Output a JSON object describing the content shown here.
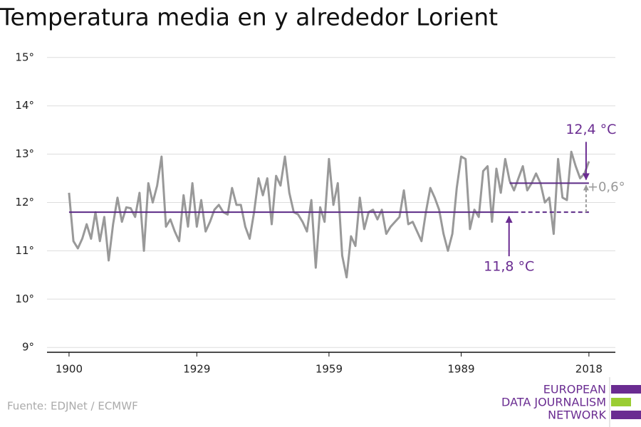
{
  "chart_data": {
    "type": "line",
    "title": "Temperatura media en y alrededor Lorient",
    "x": [
      1900,
      1901,
      1902,
      1903,
      1904,
      1905,
      1906,
      1907,
      1908,
      1909,
      1910,
      1911,
      1912,
      1913,
      1914,
      1915,
      1916,
      1917,
      1918,
      1919,
      1920,
      1921,
      1922,
      1923,
      1924,
      1925,
      1926,
      1927,
      1928,
      1929,
      1930,
      1931,
      1932,
      1933,
      1934,
      1935,
      1936,
      1937,
      1938,
      1939,
      1940,
      1941,
      1942,
      1943,
      1944,
      1945,
      1946,
      1947,
      1948,
      1949,
      1950,
      1951,
      1952,
      1953,
      1954,
      1955,
      1956,
      1957,
      1958,
      1959,
      1960,
      1961,
      1962,
      1963,
      1964,
      1965,
      1966,
      1967,
      1968,
      1969,
      1970,
      1971,
      1972,
      1973,
      1974,
      1975,
      1976,
      1977,
      1978,
      1979,
      1980,
      1981,
      1982,
      1983,
      1984,
      1985,
      1986,
      1987,
      1988,
      1989,
      1990,
      1991,
      1992,
      1993,
      1994,
      1995,
      1996,
      1997,
      1998,
      1999,
      2000,
      2001,
      2002,
      2003,
      2004,
      2005,
      2006,
      2007,
      2008,
      2009,
      2010,
      2011,
      2012,
      2013,
      2014,
      2015,
      2016,
      2017,
      2018
    ],
    "values": [
      12.2,
      11.2,
      11.05,
      11.25,
      11.55,
      11.25,
      11.8,
      11.2,
      11.7,
      10.8,
      11.55,
      12.1,
      11.6,
      11.9,
      11.88,
      11.7,
      12.2,
      11.0,
      12.4,
      12.0,
      12.35,
      12.95,
      11.5,
      11.65,
      11.4,
      11.2,
      12.15,
      11.5,
      12.4,
      11.5,
      12.05,
      11.4,
      11.6,
      11.85,
      11.95,
      11.8,
      11.75,
      12.3,
      11.95,
      11.95,
      11.5,
      11.25,
      11.8,
      12.5,
      12.15,
      12.5,
      11.55,
      12.55,
      12.35,
      12.95,
      12.2,
      11.8,
      11.75,
      11.6,
      11.4,
      12.05,
      10.65,
      11.9,
      11.6,
      12.9,
      11.95,
      12.4,
      10.9,
      10.45,
      11.3,
      11.1,
      12.1,
      11.45,
      11.8,
      11.85,
      11.65,
      11.85,
      11.35,
      11.5,
      11.6,
      11.7,
      12.25,
      11.55,
      11.6,
      11.4,
      11.2,
      11.8,
      12.3,
      12.1,
      11.85,
      11.35,
      11.0,
      11.35,
      12.3,
      12.95,
      12.9,
      11.45,
      11.85,
      11.7,
      12.65,
      12.75,
      11.6,
      12.7,
      12.2,
      12.9,
      12.45,
      12.25,
      12.5,
      12.75,
      12.25,
      12.4,
      12.6,
      12.4,
      12.0,
      12.1,
      11.35,
      12.9,
      12.1,
      12.05,
      13.05,
      12.75,
      12.5,
      12.6,
      12.85
    ],
    "color": "#999999",
    "xlim": [
      1895,
      2024
    ],
    "xticks": [
      1900,
      1929,
      1959,
      1989,
      2018
    ],
    "ylim": [
      8.9,
      15.1
    ],
    "yticks": [
      {
        "value": 9,
        "label": "9°"
      },
      {
        "value": 10,
        "label": "10°"
      },
      {
        "value": 11,
        "label": "11°"
      },
      {
        "value": 12,
        "label": "12°"
      },
      {
        "value": 13,
        "label": "13°"
      },
      {
        "value": 14,
        "label": "14°"
      },
      {
        "value": 15,
        "label": "15°"
      }
    ],
    "grid": true,
    "reference_lines": [
      {
        "value": 11.8,
        "label": "11,8 °C",
        "period": [
          1900,
          2001
        ],
        "extend_to": 2018,
        "color": "#5c2a86"
      },
      {
        "value": 12.4,
        "label": "12,4 °C",
        "period": [
          2000,
          2018
        ],
        "color": "#5c2a86"
      }
    ],
    "difference": {
      "value": 0.6,
      "label": "+0,6°",
      "color": "#999999"
    }
  },
  "source": "Fuente: EDJNet / ECMWF",
  "logo": [
    "EUROPEAN",
    "DATA JOURNALISM",
    "NETWORK"
  ]
}
